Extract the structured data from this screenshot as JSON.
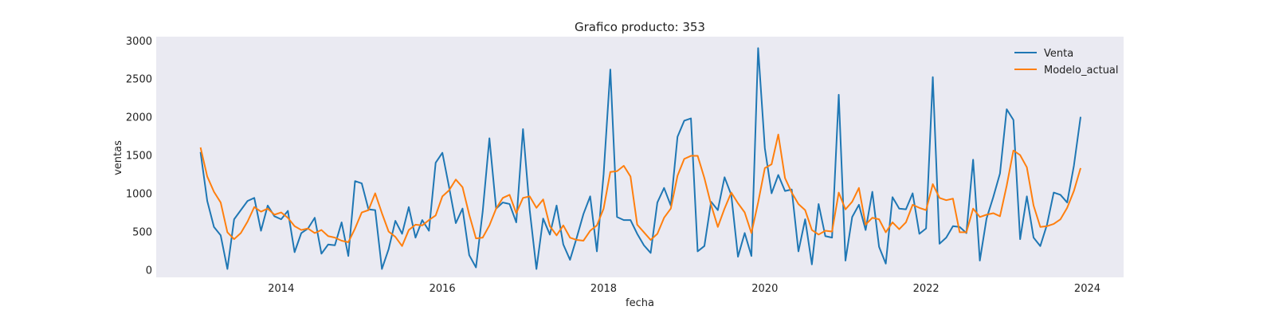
{
  "colors": {
    "background": "#ffffff",
    "plot_area": "#eaeaf2",
    "venta": "#1f77b4",
    "modelo_actual": "#ff7f0e"
  },
  "chart_data": {
    "type": "line",
    "title": "Grafico producto: 353",
    "xlabel": "fecha",
    "ylabel": "ventas",
    "x_start": "2013-01",
    "x_frequency": "monthly",
    "xlim": [
      2012.45,
      2024.45
    ],
    "ylim": [
      -100,
      3050
    ],
    "x_ticks": [
      2014,
      2016,
      2018,
      2020,
      2022,
      2024
    ],
    "x_tick_labels": [
      "2014",
      "2016",
      "2018",
      "2020",
      "2022",
      "2024"
    ],
    "y_ticks": [
      0,
      500,
      1000,
      1500,
      2000,
      2500,
      3000
    ],
    "y_tick_labels": [
      "0",
      "500",
      "1000",
      "1500",
      "2000",
      "2500",
      "3000"
    ],
    "grid": false,
    "legend_position": "top-right",
    "series": [
      {
        "name": "Venta",
        "color": "#1f77b4",
        "values": [
          1540,
          900,
          560,
          450,
          10,
          660,
          780,
          900,
          940,
          510,
          840,
          700,
          660,
          770,
          230,
          480,
          540,
          680,
          210,
          330,
          320,
          620,
          180,
          1160,
          1130,
          790,
          780,
          10,
          270,
          640,
          470,
          820,
          420,
          650,
          510,
          1400,
          1530,
          1080,
          610,
          800,
          190,
          30,
          760,
          1720,
          800,
          880,
          860,
          620,
          1840,
          780,
          10,
          670,
          460,
          840,
          330,
          130,
          420,
          730,
          960,
          240,
          1250,
          2620,
          690,
          650,
          650,
          470,
          320,
          220,
          880,
          1070,
          840,
          1740,
          1950,
          1980,
          240,
          310,
          890,
          780,
          1210,
          980,
          170,
          480,
          180,
          2900,
          1590,
          1000,
          1240,
          1030,
          1050,
          240,
          660,
          70,
          860,
          440,
          420,
          2290,
          120,
          690,
          850,
          520,
          1020,
          300,
          80,
          950,
          800,
          790,
          1000,
          470,
          540,
          2520,
          340,
          420,
          570,
          560,
          480,
          1440,
          120,
          670,
          950,
          1260,
          2100,
          1960,
          400,
          960,
          420,
          310,
          590,
          1010,
          980,
          880,
          1360,
          2000
        ]
      },
      {
        "name": "Modelo_actual",
        "color": "#ff7f0e",
        "values": [
          1600,
          1220,
          1020,
          880,
          490,
          400,
          480,
          630,
          820,
          760,
          800,
          720,
          750,
          680,
          570,
          520,
          540,
          480,
          520,
          440,
          420,
          380,
          360,
          540,
          750,
          780,
          1000,
          740,
          500,
          430,
          310,
          520,
          590,
          580,
          650,
          710,
          960,
          1040,
          1180,
          1080,
          720,
          410,
          420,
          580,
          800,
          940,
          980,
          740,
          940,
          960,
          810,
          920,
          570,
          450,
          580,
          420,
          390,
          380,
          510,
          580,
          800,
          1280,
          1290,
          1360,
          1220,
          590,
          490,
          390,
          470,
          680,
          800,
          1230,
          1450,
          1490,
          1490,
          1200,
          850,
          560,
          800,
          1010,
          870,
          750,
          480,
          880,
          1330,
          1380,
          1770,
          1200,
          1010,
          860,
          780,
          520,
          460,
          510,
          500,
          1010,
          790,
          890,
          1070,
          590,
          680,
          660,
          490,
          620,
          530,
          620,
          850,
          810,
          780,
          1120,
          940,
          910,
          930,
          490,
          490,
          800,
          690,
          720,
          740,
          700,
          1100,
          1560,
          1500,
          1340,
          840,
          560,
          570,
          600,
          660,
          810,
          1030,
          1330
        ]
      }
    ]
  }
}
